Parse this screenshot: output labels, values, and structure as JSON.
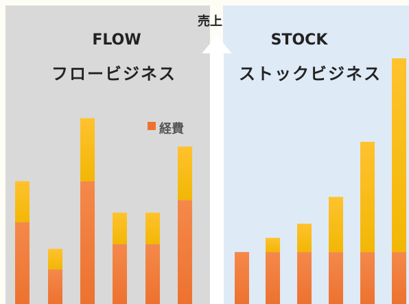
{
  "arrow_label": "売上",
  "colors": {
    "page_background": "#fdfcf5",
    "flow_panel": "#d9d9d9",
    "stock_panel": "#deeaf6",
    "arrow": "#ffffff",
    "cost_top": "#f4894a",
    "cost_bottom": "#ed7230",
    "profit_top": "#ffc22e",
    "profit_bottom": "#f2b705",
    "text": "#222222",
    "legend_text": "#555555"
  },
  "chart_data": [
    {
      "type": "bar",
      "stacked": true,
      "panel": "flow",
      "title": "FLOW",
      "subtitle": "フロービジネス",
      "legend": {
        "position": "top-right",
        "items": [
          "経費"
        ]
      },
      "axis_labels_shown": false,
      "gridlines": false,
      "scale": "relative",
      "series": [
        {
          "name": "経費",
          "color": "cost",
          "values": [
            2.6,
            1.1,
            3.9,
            1.9,
            1.9,
            3.3
          ]
        },
        {
          "color": "profit",
          "values": [
            1.3,
            0.65,
            2.0,
            1.0,
            1.0,
            1.7
          ]
        }
      ]
    },
    {
      "type": "bar",
      "stacked": true,
      "panel": "stock",
      "title": "STOCK",
      "subtitle": "ストックビジネス",
      "axis_labels_shown": false,
      "gridlines": false,
      "scale": "relative",
      "series": [
        {
          "color": "cost",
          "values": [
            1.65,
            1.65,
            1.65,
            1.65,
            1.65,
            1.65
          ]
        },
        {
          "color": "profit",
          "values": [
            0,
            0.45,
            0.9,
            1.75,
            3.5,
            6.15
          ]
        }
      ]
    }
  ]
}
